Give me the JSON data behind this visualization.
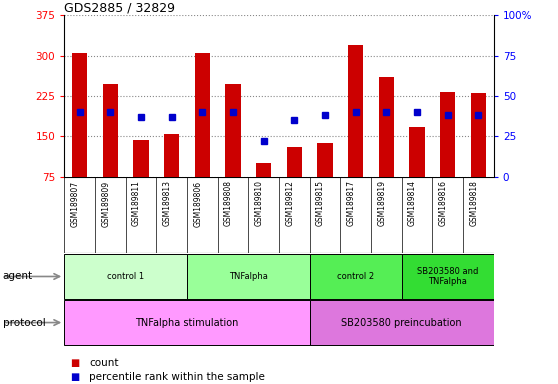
{
  "title": "GDS2885 / 32829",
  "samples": [
    "GSM189807",
    "GSM189809",
    "GSM189811",
    "GSM189813",
    "GSM189806",
    "GSM189808",
    "GSM189810",
    "GSM189812",
    "GSM189815",
    "GSM189817",
    "GSM189819",
    "GSM189814",
    "GSM189816",
    "GSM189818"
  ],
  "counts": [
    305,
    248,
    143,
    155,
    305,
    248,
    100,
    130,
    138,
    320,
    260,
    168,
    232,
    230
  ],
  "percentile_ranks": [
    40,
    40,
    37,
    37,
    40,
    40,
    22,
    35,
    38,
    40,
    40,
    40,
    38,
    38
  ],
  "bar_color": "#cc0000",
  "dot_color": "#0000cc",
  "ylim_left": [
    75,
    375
  ],
  "ylim_right": [
    0,
    100
  ],
  "yticks_left": [
    75,
    150,
    225,
    300,
    375
  ],
  "yticks_right": [
    0,
    25,
    50,
    75,
    100
  ],
  "agent_groups": [
    {
      "label": "control 1",
      "start": 0,
      "end": 4,
      "color": "#ccffcc"
    },
    {
      "label": "TNFalpha",
      "start": 4,
      "end": 8,
      "color": "#99ff99"
    },
    {
      "label": "control 2",
      "start": 8,
      "end": 11,
      "color": "#55ee55"
    },
    {
      "label": "SB203580 and\nTNFalpha",
      "start": 11,
      "end": 14,
      "color": "#33dd33"
    }
  ],
  "protocol_groups": [
    {
      "label": "TNFalpha stimulation",
      "start": 0,
      "end": 8,
      "color": "#ff99ff"
    },
    {
      "label": "SB203580 preincubation",
      "start": 8,
      "end": 14,
      "color": "#dd77dd"
    }
  ],
  "agent_label": "agent",
  "protocol_label": "protocol",
  "legend_count_label": "count",
  "legend_percentile_label": "percentile rank within the sample",
  "background_color": "#ffffff",
  "grid_color": "#888888",
  "tick_label_area_color": "#cccccc"
}
